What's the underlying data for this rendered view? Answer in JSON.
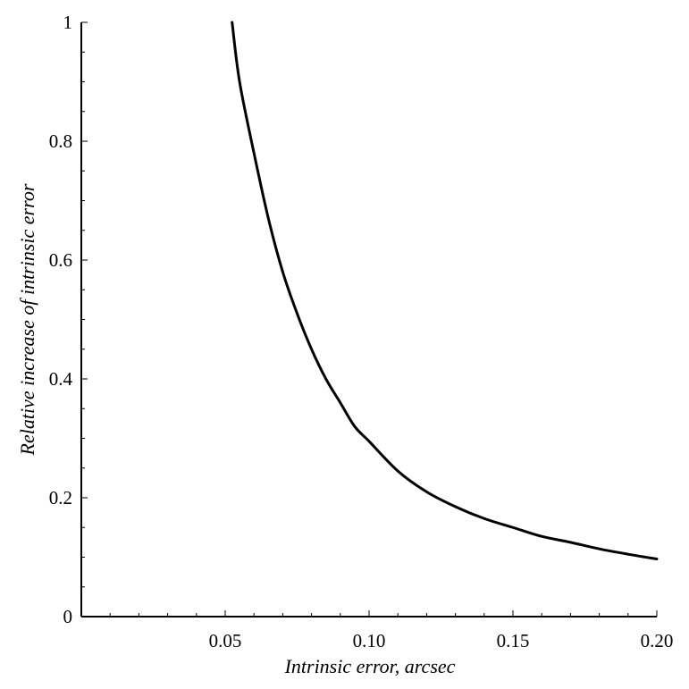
{
  "chart_data": {
    "type": "line",
    "title": "",
    "xlabel": "Intrinsic error, arcsec",
    "ylabel": "Relative increase of intrinsic error",
    "xlim": [
      0.0,
      0.2
    ],
    "ylim": [
      0,
      1
    ],
    "grid": false,
    "legend": "none",
    "x_ticks": [
      {
        "value": 0.05,
        "label": "0.05"
      },
      {
        "value": 0.1,
        "label": "0.10"
      },
      {
        "value": 0.15,
        "label": "0.15"
      },
      {
        "value": 0.2,
        "label": "0.20"
      }
    ],
    "y_ticks": [
      {
        "value": 0,
        "label": "0"
      },
      {
        "value": 0.2,
        "label": "0.2"
      },
      {
        "value": 0.4,
        "label": "0.4"
      },
      {
        "value": 0.6,
        "label": "0.6"
      },
      {
        "value": 0.8,
        "label": "0.8"
      },
      {
        "value": 1,
        "label": "1"
      }
    ],
    "series": [
      {
        "color": "#000000",
        "x": [
          0.0524,
          0.055,
          0.06,
          0.065,
          0.07,
          0.075,
          0.08,
          0.085,
          0.09,
          0.095,
          0.1,
          0.11,
          0.12,
          0.13,
          0.14,
          0.15,
          0.16,
          0.17,
          0.18,
          0.19,
          0.2
        ],
        "y": [
          1.0,
          0.9,
          0.78,
          0.67,
          0.58,
          0.51,
          0.45,
          0.4,
          0.36,
          0.32,
          0.295,
          0.245,
          0.21,
          0.185,
          0.165,
          0.15,
          0.135,
          0.125,
          0.114,
          0.105,
          0.097
        ]
      }
    ]
  }
}
